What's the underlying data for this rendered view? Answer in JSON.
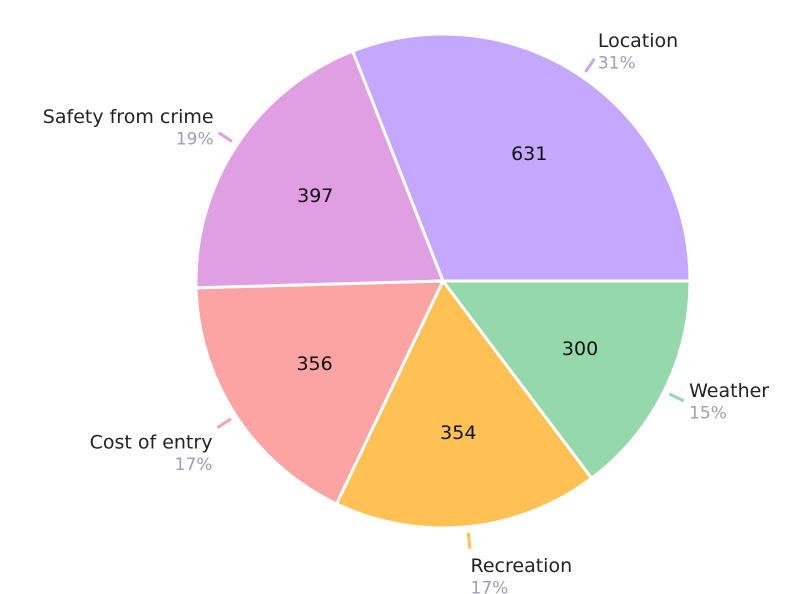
{
  "chart_data": {
    "type": "pie",
    "categories": [
      "Location",
      "Safety from crime",
      "Cost of entry",
      "Recreation",
      "Weather"
    ],
    "values": [
      631,
      397,
      356,
      354,
      300
    ],
    "percent_labels": [
      "31%",
      "19%",
      "17%",
      "17%",
      "15%"
    ],
    "colors": [
      "#c4a8ff",
      "#e19fe3",
      "#fca3a3",
      "#ffc154",
      "#94d8ac"
    ]
  }
}
